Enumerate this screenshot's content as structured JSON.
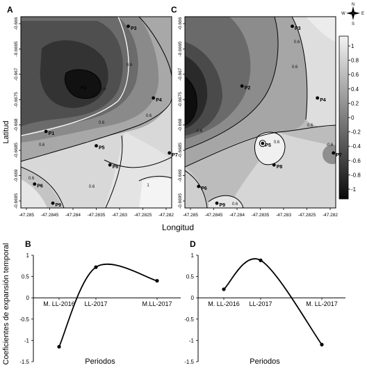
{
  "figure": {
    "shared_y_label": "Latitud",
    "shared_x_label": "Longitud",
    "shared_expansion_y_label": "Coeficientes de expansión temporal"
  },
  "compass": {
    "n": "N",
    "s": "S",
    "e": "E",
    "w": "W"
  },
  "colorbar": {
    "ticks": [
      "1",
      "0.8",
      "0.6",
      "0.4",
      "0.2",
      "0",
      "-0.2",
      "-0.4",
      "-0.6",
      "-0.8",
      "-1"
    ],
    "low_color": "#0a0a0a",
    "high_color": "#f2f2f2"
  },
  "chart_data": [
    {
      "panel": "A",
      "type": "contour",
      "xlabel": "Longitud",
      "ylabel": "Latitud",
      "x_ticks": [
        "-47.285",
        "-47.2845",
        "-47.284",
        "-47.2835",
        "-47.283",
        "-47.2825",
        "-47.282"
      ],
      "y_ticks": [
        "-0.666",
        "-0.6665",
        "-0.667",
        "-0.6675",
        "-0.668",
        "-0.6685",
        "-0.669",
        "-0.6695"
      ],
      "contour_labels": [
        "-0.6",
        "0.6",
        "0.6",
        "0.6",
        "0.6",
        "0.6",
        "0.6",
        "1"
      ],
      "points": [
        {
          "name": "P1",
          "lon": -47.2847,
          "lat": -0.66815
        },
        {
          "name": "P3",
          "lon": -47.2829,
          "lat": -0.66595
        },
        {
          "name": "P4",
          "lon": -47.28235,
          "lat": -0.66745
        },
        {
          "name": "P5",
          "lon": -47.2836,
          "lat": -0.66845
        },
        {
          "name": "P6",
          "lon": -47.28495,
          "lat": -0.66925
        },
        {
          "name": "P7",
          "lon": -47.282,
          "lat": -0.6686
        },
        {
          "name": "P8",
          "lon": -47.2833,
          "lat": -0.66885
        },
        {
          "name": "P9",
          "lon": -47.28455,
          "lat": -0.66965
        },
        {
          "name": "P2",
          "lon": -47.284,
          "lat": -0.6672,
          "label_only": true
        }
      ]
    },
    {
      "panel": "C",
      "type": "contour",
      "xlabel": "Longitud",
      "ylabel": "Latitud",
      "x_ticks": [
        "-47.285",
        "-47.2845",
        "-47.284",
        "-47.2835",
        "-47.283",
        "-47.2825",
        "-47.282"
      ],
      "y_ticks": [
        "-0.666",
        "-0.6665",
        "-0.667",
        "-0.6675",
        "-0.668",
        "-0.6685",
        "-0.669",
        "-0.6695"
      ],
      "contour_labels": [
        "-0.6",
        "0.6",
        "0.6",
        "0.6",
        "0.6",
        "0.6",
        "-0.6"
      ],
      "points": [
        {
          "name": "P2",
          "lon": -47.284,
          "lat": -0.6672
        },
        {
          "name": "P3",
          "lon": -47.2829,
          "lat": -0.66595
        },
        {
          "name": "P4",
          "lon": -47.28235,
          "lat": -0.66745
        },
        {
          "name": "P5",
          "lon": -47.28355,
          "lat": -0.6684
        },
        {
          "name": "P6",
          "lon": -47.28495,
          "lat": -0.6693
        },
        {
          "name": "P7",
          "lon": -47.282,
          "lat": -0.6686
        },
        {
          "name": "P8",
          "lon": -47.2833,
          "lat": -0.66885
        },
        {
          "name": "P9",
          "lon": -47.28455,
          "lat": -0.66965
        }
      ]
    },
    {
      "panel": "B",
      "type": "line",
      "xlabel": "Periodos",
      "ylabel": "Coeficientes de expansión temporal",
      "categories": [
        "M. LL-2016",
        "LL-2017",
        "M.LL-2017"
      ],
      "values": [
        -1.15,
        0.72,
        0.4
      ],
      "ylim": [
        -1.5,
        1
      ],
      "yticks": [
        "1",
        "0.5",
        "0",
        "-0.5",
        "-1",
        "-1.5"
      ]
    },
    {
      "panel": "D",
      "type": "line",
      "xlabel": "Periodos",
      "ylabel": "",
      "categories": [
        "M. LL-2016",
        "LL-2017",
        "M. LL-2017"
      ],
      "values": [
        0.2,
        0.88,
        -1.1
      ],
      "ylim": [
        -1.5,
        1
      ],
      "yticks": [
        "1",
        "0.5",
        "0",
        "-0.5",
        "-1",
        "-1.5"
      ]
    }
  ]
}
